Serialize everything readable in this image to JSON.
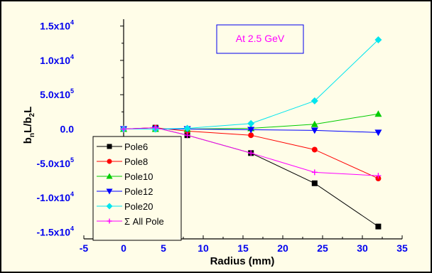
{
  "chart_data": {
    "type": "line",
    "xlabel": "Radius (mm)",
    "ylabel_parts": [
      "b",
      "n",
      "L/b",
      "2",
      "L"
    ],
    "xlim": [
      -5,
      35
    ],
    "ylim": [
      -0.00016,
      0.00016
    ],
    "x_ticks": [
      -5,
      0,
      5,
      10,
      15,
      20,
      25,
      30,
      35
    ],
    "y_ticks": [
      {
        "value": 0.00015,
        "mant": "1.5x10",
        "exp": "4"
      },
      {
        "value": 0.0001,
        "mant": "1.0x10",
        "exp": "4"
      },
      {
        "value": 5e-05,
        "mant": "5.0x10",
        "exp": "5"
      },
      {
        "value": 0,
        "mant": "0.0",
        "exp": ""
      },
      {
        "value": -5e-05,
        "mant": "-5.0x10",
        "exp": "5"
      },
      {
        "value": -0.0001,
        "mant": "-1.0x10",
        "exp": "4"
      },
      {
        "value": -0.00015,
        "mant": "-1.5x10",
        "exp": "4"
      }
    ],
    "x": [
      0,
      4,
      8,
      16,
      24,
      32
    ],
    "series": [
      {
        "name": "Pole6",
        "color": "#000000",
        "marker": "square",
        "values": [
          0,
          2e-06,
          -9e-06,
          -3.5e-05,
          -7.9e-05,
          -0.000142
        ]
      },
      {
        "name": "Pole8",
        "color": "#ff0000",
        "marker": "circle",
        "values": [
          0,
          2e-06,
          -3e-06,
          -9e-06,
          -3e-05,
          -7.2e-05
        ]
      },
      {
        "name": "Pole10",
        "color": "#00cc00",
        "marker": "triangle-up",
        "values": [
          0,
          0,
          0,
          1e-06,
          7e-06,
          2.2e-05
        ]
      },
      {
        "name": "Pole12",
        "color": "#0000ff",
        "marker": "triangle-down",
        "values": [
          0,
          0,
          0,
          -1e-06,
          -2e-06,
          -5e-06
        ]
      },
      {
        "name": "Pole20",
        "color": "#00e5ee",
        "marker": "diamond",
        "values": [
          0,
          0,
          1e-06,
          8e-06,
          4.1e-05,
          0.00013
        ]
      },
      {
        "name": "Σ All Pole",
        "color": "#ff00ff",
        "marker": "plus",
        "values": [
          0,
          2e-06,
          -9e-06,
          -3.5e-05,
          -6.3e-05,
          -6.8e-05
        ]
      }
    ],
    "annotation": "At 2.5 GeV",
    "legend_position": "bottom-left",
    "grid": false
  }
}
